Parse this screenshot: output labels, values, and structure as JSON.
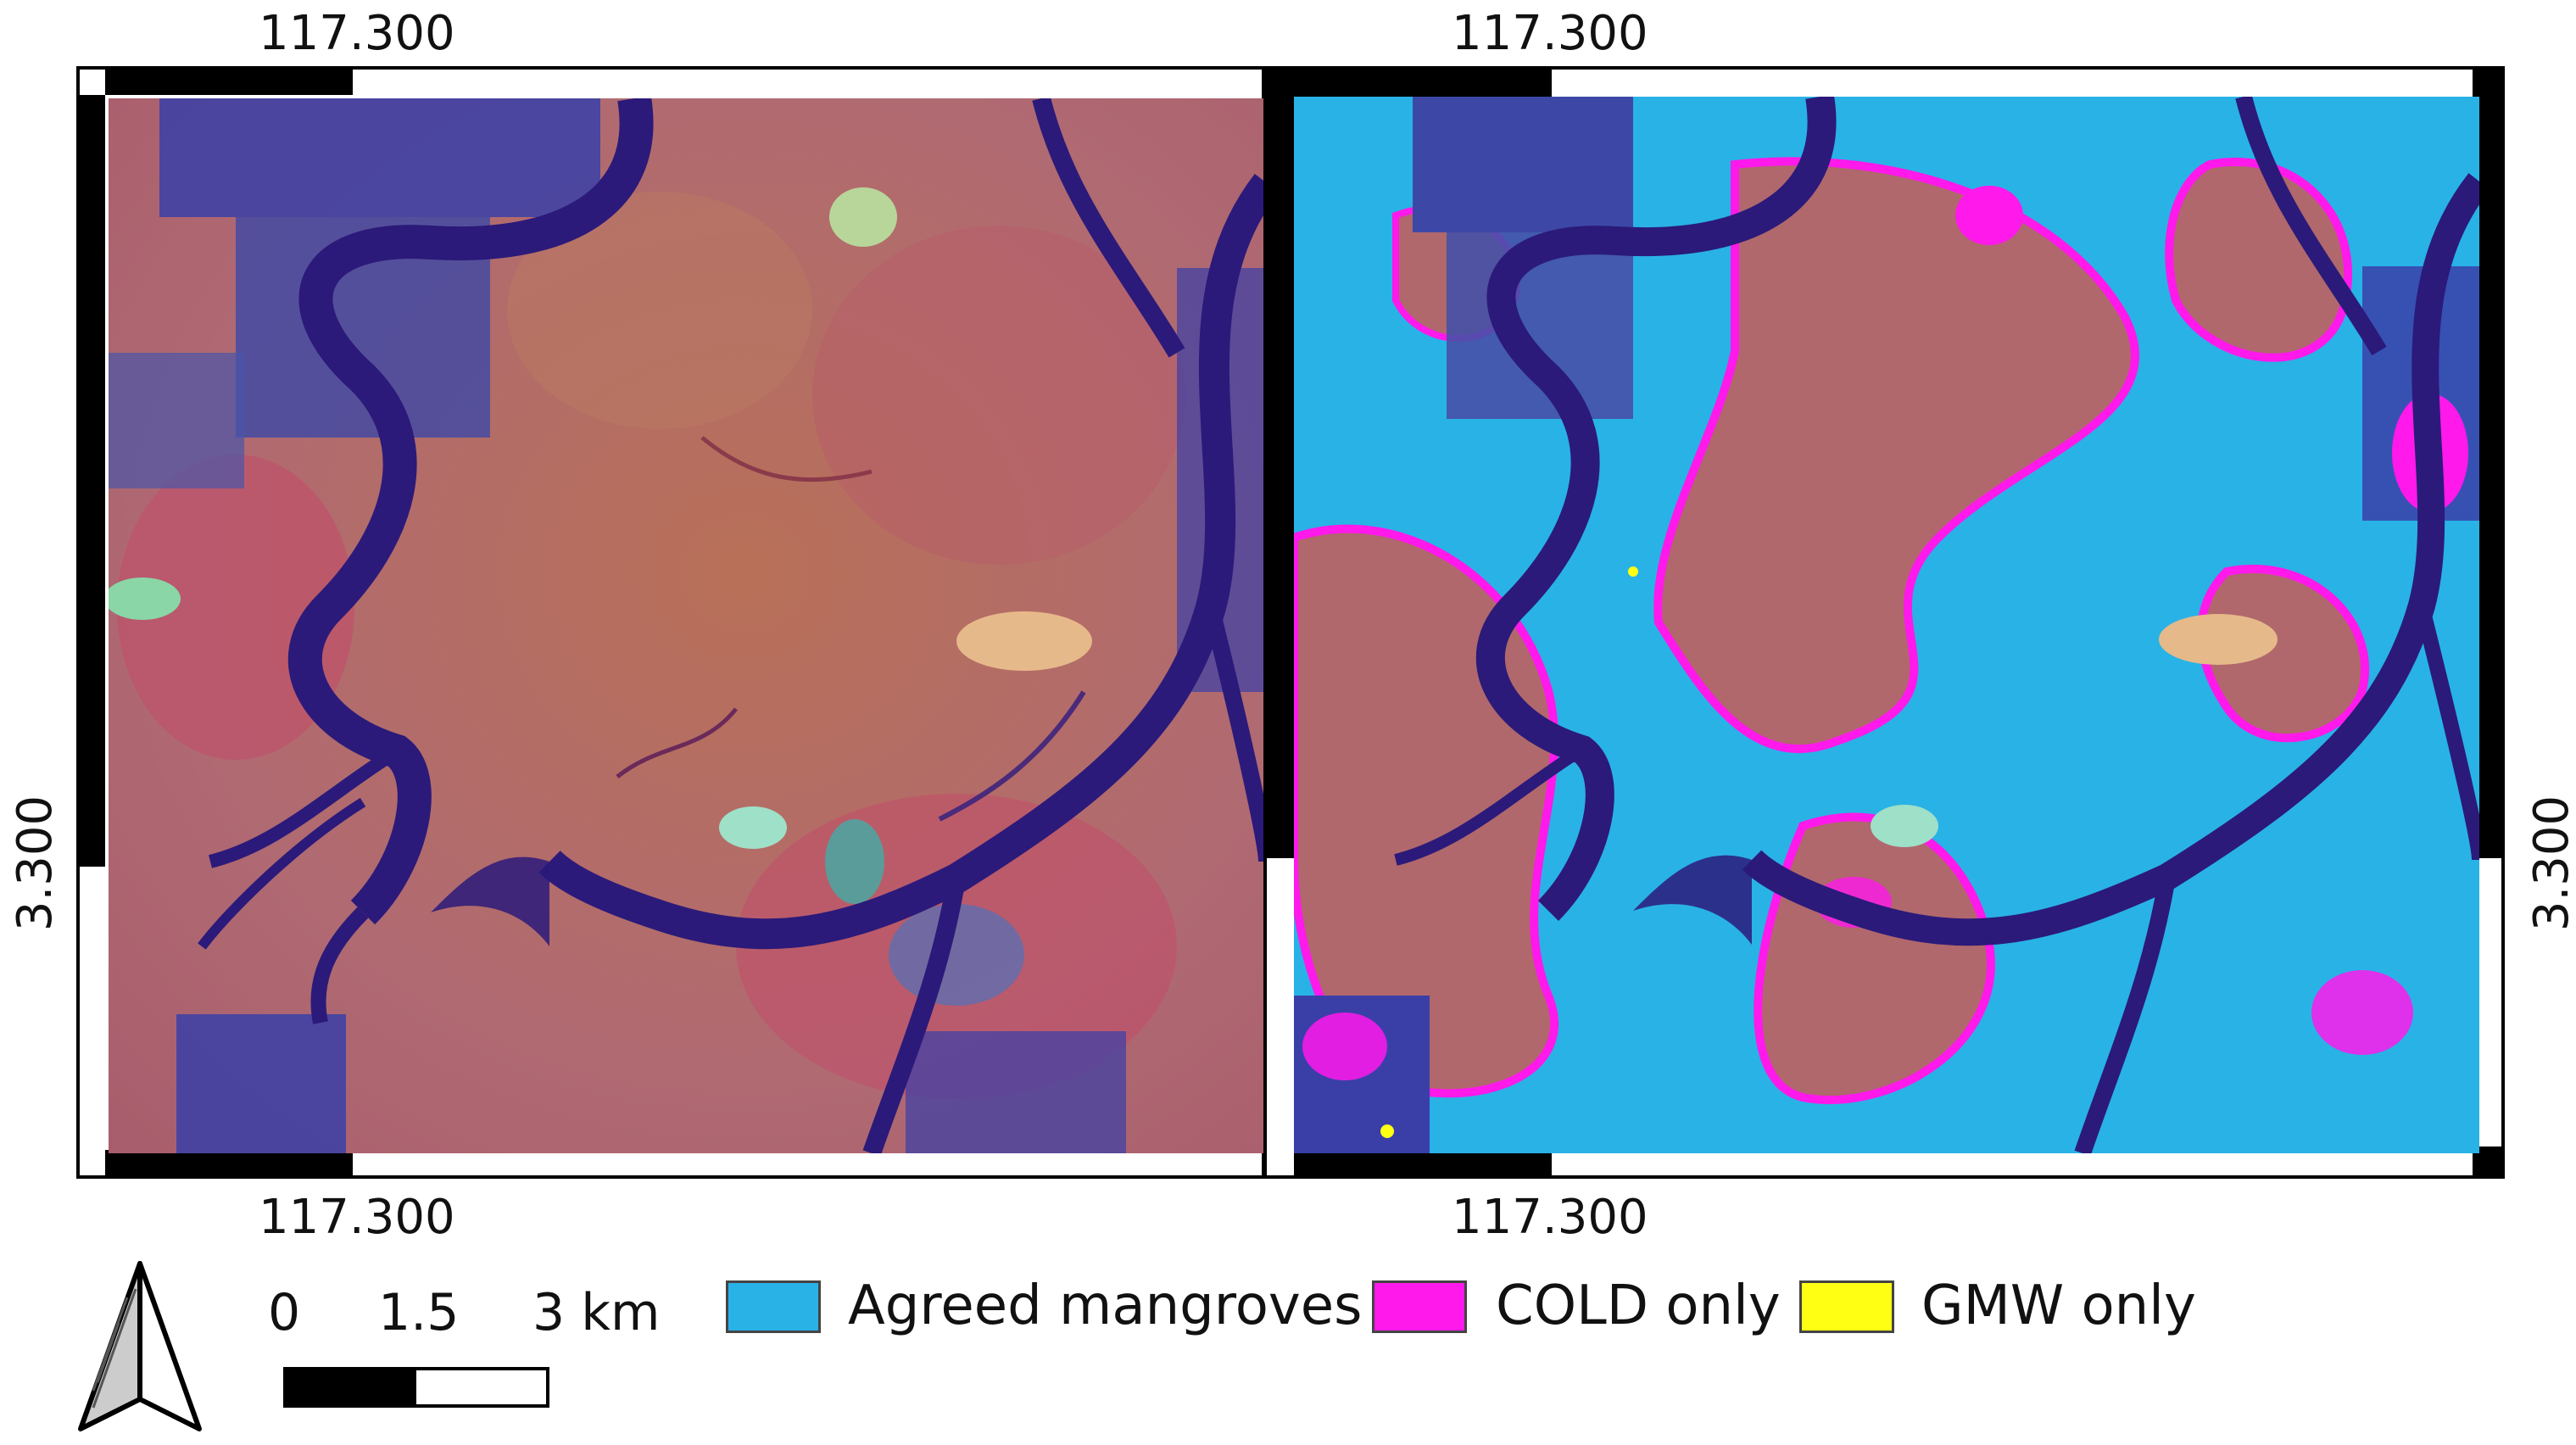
{
  "panels": [
    {
      "name": "left",
      "top_label": "117.300",
      "bottom_label": "117.300",
      "side_label": "3.300",
      "side": "left"
    },
    {
      "name": "right",
      "top_label": "117.300",
      "bottom_label": "117.300",
      "side_label": "3.300",
      "side": "right"
    }
  ],
  "scale_bar": {
    "labels": [
      "0",
      "1.5",
      "3 km"
    ]
  },
  "legend": {
    "items": [
      {
        "label": "Agreed mangroves",
        "color": "#29b2e6"
      },
      {
        "label": "COLD only",
        "color": "#ff19eb"
      },
      {
        "label": "GMW only",
        "color": "#ffff14"
      }
    ]
  },
  "colors": {
    "background_land": "#b06a72",
    "river": "#2b1a7a",
    "aquaculture": "#3a3fa8",
    "cleared": "#7fd0a8",
    "sandy": "#e6b98a",
    "mangrove_agreed": "#29b2e6",
    "cold_only": "#ff19eb",
    "gmw_only": "#ffff14"
  }
}
